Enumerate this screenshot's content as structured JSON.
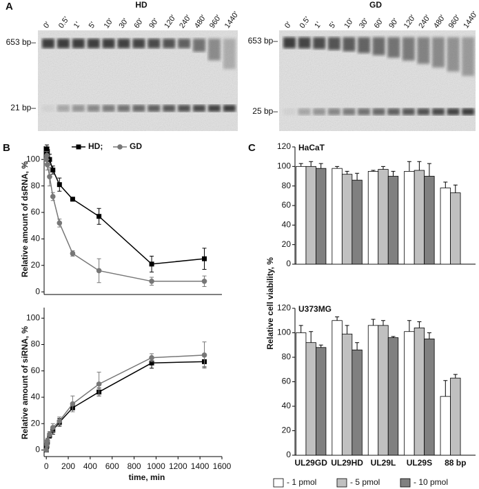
{
  "panels": [
    "A",
    "B",
    "C"
  ],
  "gels": [
    {
      "title": "HD",
      "lanes": [
        "0'",
        "0.5'",
        "1'",
        "5'",
        "10'",
        "30'",
        "60'",
        "90'",
        "120'",
        "240'",
        "480'",
        "960'",
        "1440'"
      ],
      "markers": [
        "653 bp–",
        "21 bp–"
      ]
    },
    {
      "title": "GD",
      "lanes": [
        "0'",
        "0.5'",
        "1'",
        "5'",
        "10'",
        "30'",
        "60'",
        "90'",
        "120'",
        "240'",
        "480'",
        "960'",
        "1440'"
      ],
      "markers": [
        "653 bp–",
        "25 bp–"
      ]
    }
  ],
  "chart_data": [
    {
      "type": "line",
      "ylabel": "Relative amount of dsRNA, %",
      "xlim": [
        -20,
        1600
      ],
      "ylim": [
        -2,
        110
      ],
      "yticks": [
        0,
        20,
        40,
        60,
        80,
        100
      ],
      "x": [
        0,
        5,
        10,
        30,
        60,
        120,
        240,
        480,
        960,
        1440
      ],
      "series": [
        {
          "name": "HD;",
          "color": "#000000",
          "marker": "square",
          "values": [
            104,
            108,
            106,
            100,
            92,
            81,
            70,
            57,
            21,
            25
          ],
          "errors": [
            3,
            3,
            3,
            4,
            3,
            5,
            1,
            6,
            6,
            8
          ]
        },
        {
          "name": "GD",
          "color": "#777777",
          "marker": "circle",
          "values": [
            100,
            103,
            96,
            87,
            72,
            52,
            29,
            16,
            8,
            8
          ],
          "errors": [
            3,
            3,
            4,
            7,
            3,
            3,
            2,
            9,
            3,
            4
          ]
        }
      ]
    },
    {
      "type": "line",
      "ylabel": "Relative amount of siRNA, %",
      "xlabel": "time, min",
      "xlim": [
        -20,
        1600
      ],
      "xticks": [
        0,
        200,
        400,
        600,
        800,
        1000,
        1200,
        1400,
        1600
      ],
      "ylim": [
        -5,
        108
      ],
      "yticks": [
        0,
        20,
        40,
        60,
        80,
        100
      ],
      "x": [
        0,
        5,
        10,
        30,
        60,
        120,
        240,
        480,
        960,
        1440
      ],
      "series": [
        {
          "color": "#000000",
          "marker": "square",
          "values": [
            0,
            3,
            6,
            11,
            15,
            21,
            32,
            44,
            66,
            67
          ],
          "errors": [
            1,
            2,
            2,
            2,
            3,
            3,
            3,
            3,
            4,
            4
          ]
        },
        {
          "color": "#777777",
          "marker": "circle",
          "values": [
            0,
            4,
            7,
            12,
            17,
            22,
            35,
            50,
            70,
            72
          ],
          "errors": [
            1,
            2,
            2,
            2,
            3,
            3,
            6,
            9,
            3,
            10
          ]
        }
      ]
    },
    {
      "type": "bar",
      "label": "HaCaT",
      "ylabel": "Relative cell viability, %",
      "ylim": [
        0,
        120
      ],
      "yticks": [
        0,
        20,
        40,
        60,
        80,
        100,
        120
      ],
      "series": [
        {
          "color": "#ffffff",
          "values": [
            100,
            98,
            95,
            95,
            78
          ],
          "errors": [
            3,
            2,
            1,
            10,
            6
          ]
        },
        {
          "color": "#c0c0c0",
          "values": [
            100,
            92,
            97,
            96,
            73
          ],
          "errors": [
            5,
            3,
            3,
            9,
            8
          ]
        },
        {
          "color": "#808080",
          "values": [
            98,
            86,
            90,
            90,
            null
          ],
          "errors": [
            5,
            7,
            5,
            13,
            null
          ]
        }
      ]
    },
    {
      "type": "bar",
      "label": "U373MG",
      "categories": [
        "UL29GD",
        "UL29HD",
        "UL29L",
        "UL29S",
        "88 bp"
      ],
      "ylim": [
        0,
        120
      ],
      "yticks": [
        0,
        20,
        40,
        60,
        80,
        100,
        120
      ],
      "series": [
        {
          "name": "- 1 pmol",
          "color": "#ffffff",
          "values": [
            100,
            110,
            106,
            101,
            48
          ],
          "errors": [
            6,
            3,
            5,
            9,
            13
          ]
        },
        {
          "name": "- 5 pmol",
          "color": "#c0c0c0",
          "values": [
            92,
            99,
            106,
            104,
            63
          ],
          "errors": [
            9,
            7,
            4,
            5,
            3
          ]
        },
        {
          "name": "- 10 pmol",
          "color": "#808080",
          "values": [
            88,
            86,
            96,
            95,
            null
          ],
          "errors": [
            2,
            6,
            1,
            5,
            null
          ]
        }
      ]
    }
  ]
}
